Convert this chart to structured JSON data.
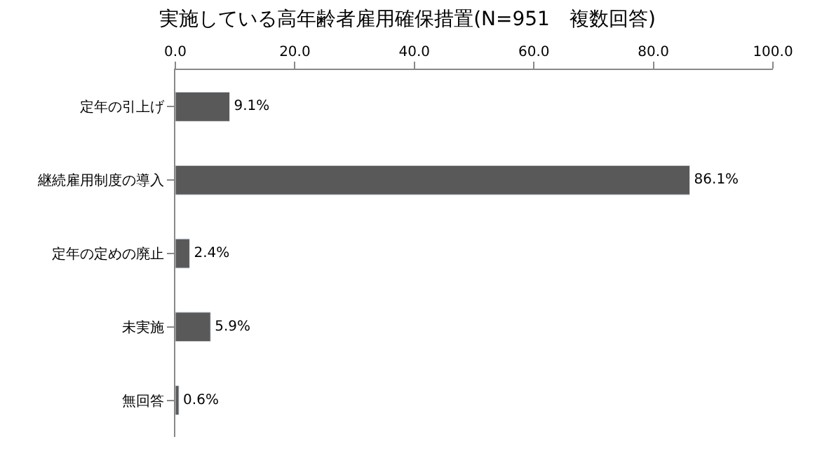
{
  "chart_data": {
    "type": "bar",
    "orientation": "horizontal",
    "title": "実施している高年齢者雇用確保措置(N=951　複数回答)",
    "categories": [
      "定年の引上げ",
      "継続雇用制度の導入",
      "定年の定めの廃止",
      "未実施",
      "無回答"
    ],
    "values": [
      9.1,
      86.1,
      2.4,
      5.9,
      0.6
    ],
    "value_labels": [
      "9.1%",
      "86.1%",
      "2.4%",
      "5.9%",
      "0.6%"
    ],
    "color": "#595959",
    "xlim": [
      0,
      100
    ],
    "xticks": [
      {
        "value": 0,
        "label": "0.0"
      },
      {
        "value": 20,
        "label": "20.0"
      },
      {
        "value": 40,
        "label": "40.0"
      },
      {
        "value": 60,
        "label": "60.0"
      },
      {
        "value": 80,
        "label": "80.0"
      },
      {
        "value": 100,
        "label": "100.0"
      }
    ]
  }
}
